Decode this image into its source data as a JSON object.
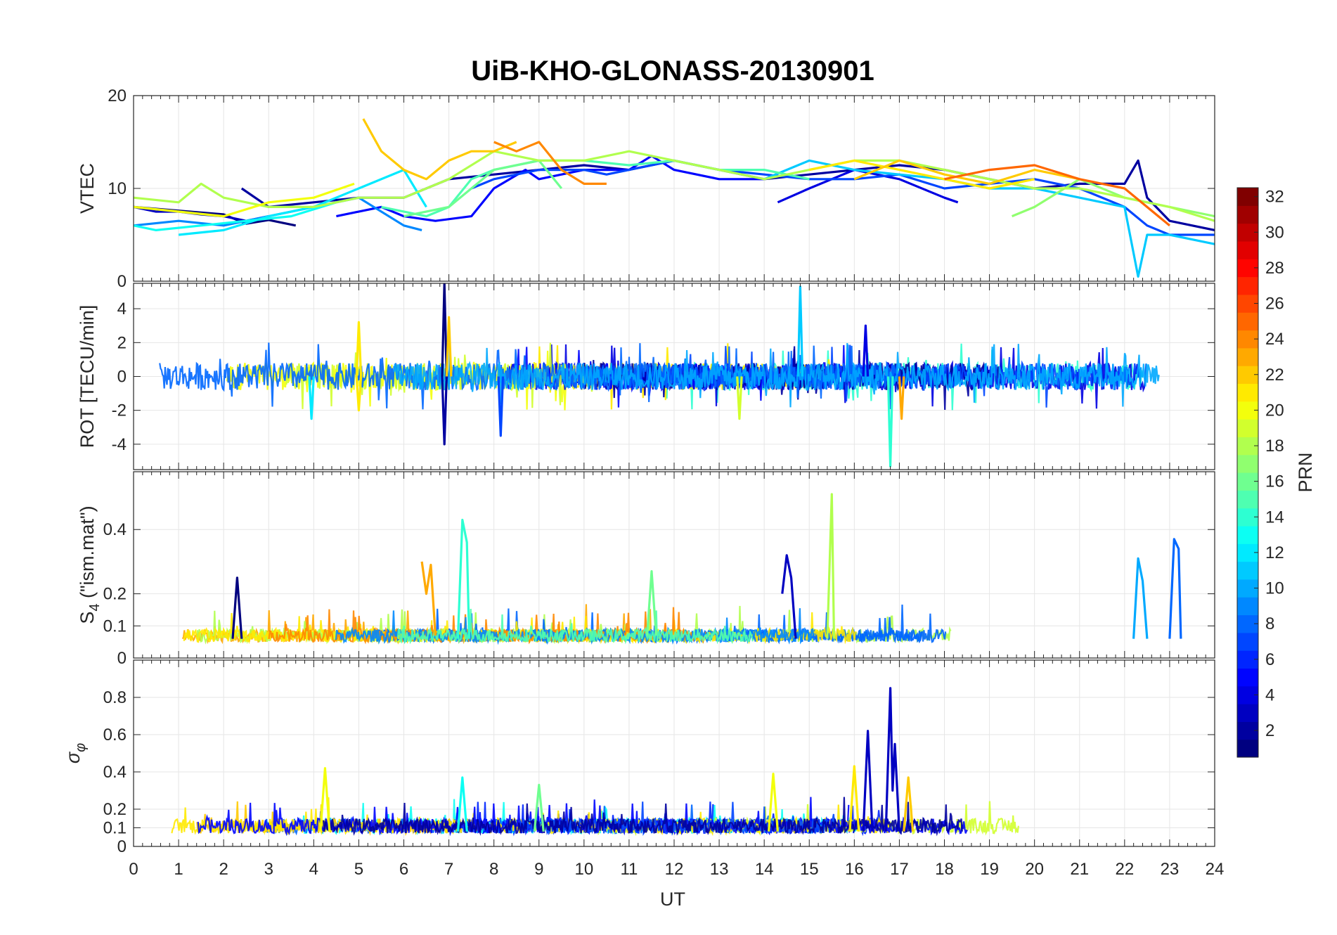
{
  "chart_data": {
    "type": "line",
    "title": "UiB-KHO-GLONASS-20130901",
    "xlabel": "UT",
    "xlim": [
      0,
      24
    ],
    "xticks": [
      0,
      1,
      2,
      3,
      4,
      5,
      6,
      7,
      8,
      9,
      10,
      11,
      12,
      13,
      14,
      15,
      16,
      17,
      18,
      19,
      20,
      21,
      22,
      23,
      24
    ],
    "grid": true,
    "colormap": "jet",
    "colorbar": {
      "label": "PRN",
      "range": [
        1,
        32
      ],
      "ticks": [
        2,
        4,
        6,
        8,
        10,
        12,
        14,
        16,
        18,
        20,
        22,
        24,
        26,
        28,
        30,
        32
      ],
      "placement": "right"
    },
    "panels": [
      {
        "ylabel": "VTEC",
        "ylim": [
          0,
          20
        ],
        "yticks": [
          0,
          10,
          20
        ],
        "series": [
          {
            "prn": 1,
            "x": [
              0,
              1,
              2,
              2.5,
              3,
              3.6
            ],
            "y": [
              8,
              7.6,
              7.2,
              6.2,
              6.6,
              6
            ]
          },
          {
            "prn": 2,
            "x": [
              2.4,
              3,
              4,
              5,
              6,
              7,
              8,
              9,
              10,
              11,
              12,
              13,
              14,
              15,
              16,
              17,
              18,
              19,
              20,
              21,
              22,
              22.3,
              22.5,
              23,
              24
            ],
            "y": [
              10,
              8,
              8.5,
              9,
              9,
              11,
              11.5,
              12,
              12.5,
              12,
              13,
              12,
              11,
              11.5,
              12,
              12.5,
              12,
              11,
              10,
              10.5,
              10.5,
              13,
              9,
              6.5,
              5.5
            ]
          },
          {
            "prn": 3,
            "x": [
              0,
              0.5,
              1,
              1.5,
              2,
              2.5,
              3
            ],
            "y": [
              8,
              7.5,
              7.5,
              7.2,
              7,
              6.5,
              7
            ]
          },
          {
            "prn": 4,
            "x": [
              14.3,
              15,
              16,
              17,
              18,
              18.3
            ],
            "y": [
              8.5,
              10,
              12,
              11,
              9,
              8.5
            ]
          },
          {
            "prn": 5,
            "x": [
              4.5,
              5.5,
              6,
              6.7,
              7.5,
              8,
              8.7,
              9,
              10,
              11,
              11.5,
              12,
              13,
              14
            ],
            "y": [
              7,
              8,
              7,
              6.5,
              7,
              10,
              12,
              11,
              12,
              12,
              13.5,
              12,
              11,
              11
            ]
          },
          {
            "prn": 7,
            "x": [
              7.5,
              8,
              9,
              10,
              10.5,
              11,
              12,
              13,
              14,
              15,
              16,
              17,
              18,
              19,
              20,
              21,
              22,
              22.5,
              23,
              24
            ],
            "y": [
              10,
              11,
              12,
              12,
              11.5,
              12,
              13,
              12,
              11.5,
              11,
              11,
              11.5,
              10,
              10.5,
              11,
              10,
              8,
              6,
              5,
              5
            ]
          },
          {
            "prn": 9,
            "x": [
              0,
              1,
              2,
              3,
              4,
              5,
              6,
              6.4
            ],
            "y": [
              6,
              6.5,
              6,
              7,
              8,
              9,
              6,
              5.5
            ]
          },
          {
            "prn": 11,
            "x": [
              14,
              15,
              16,
              17,
              18,
              19,
              20,
              21,
              22,
              22.3,
              22.5,
              23,
              24
            ],
            "y": [
              11,
              13,
              12,
              11.5,
              11,
              10,
              10,
              9,
              8,
              0.5,
              5,
              5,
              4
            ]
          },
          {
            "prn": 12,
            "x": [
              1,
              2,
              3,
              4,
              5,
              6,
              6.5
            ],
            "y": [
              5,
              5.5,
              7,
              8,
              10,
              12,
              8
            ]
          },
          {
            "prn": 13,
            "x": [
              0,
              0.5,
              1.5,
              2.5,
              3.5,
              4.5
            ],
            "y": [
              6,
              5.5,
              6,
              6.5,
              7,
              8.5
            ]
          },
          {
            "prn": 15,
            "x": [
              5.5,
              6.5,
              7,
              7.5,
              8,
              9,
              10,
              11,
              12,
              13,
              14,
              15
            ],
            "y": [
              8,
              7,
              8,
              11,
              12,
              13,
              13,
              12.5,
              13,
              12,
              12,
              11
            ]
          },
          {
            "prn": 16,
            "x": [
              6,
              7,
              8,
              9,
              9.5
            ],
            "y": [
              7,
              8,
              12,
              13,
              10
            ]
          },
          {
            "prn": 17,
            "x": [
              19.5,
              20,
              21,
              22,
              23,
              24
            ],
            "y": [
              7,
              8,
              11,
              9,
              8,
              7
            ]
          },
          {
            "prn": 18,
            "x": [
              0,
              1,
              1.5,
              2,
              3,
              4,
              5,
              6,
              7,
              8,
              9,
              10,
              11,
              12,
              13,
              14,
              15,
              16,
              17,
              18,
              19,
              20,
              21,
              22,
              23,
              24
            ],
            "y": [
              9,
              8.5,
              10.5,
              9,
              8,
              8,
              9,
              9,
              11,
              14,
              13,
              13,
              14,
              13,
              12,
              11,
              12,
              13,
              13,
              12,
              11,
              10,
              10,
              9,
              8,
              6.5
            ]
          },
          {
            "prn": 20,
            "x": [
              0,
              1,
              2,
              3,
              4,
              4.9
            ],
            "y": [
              8,
              7.5,
              7,
              8.5,
              9,
              10.5
            ]
          },
          {
            "prn": 21,
            "x": [
              15,
              16,
              17,
              18,
              19,
              20
            ],
            "y": [
              12,
              13,
              12,
              11,
              10,
              11
            ]
          },
          {
            "prn": 22,
            "x": [
              5.1,
              5.5,
              6,
              6.5,
              7,
              7.5,
              8,
              8.5
            ],
            "y": [
              17.5,
              14,
              12,
              11,
              13,
              14,
              14,
              15
            ]
          },
          {
            "prn": 22,
            "x": [
              16,
              17,
              18,
              19,
              20,
              21
            ],
            "y": [
              11,
              13,
              11.5,
              10.5,
              12,
              11
            ]
          },
          {
            "prn": 24,
            "x": [
              8,
              8.5,
              9,
              9.5,
              10,
              10.5
            ],
            "y": [
              15,
              14,
              15,
              12,
              10.5,
              10.5
            ]
          },
          {
            "prn": 25,
            "x": [
              18,
              19,
              20,
              21,
              22,
              23
            ],
            "y": [
              11,
              12,
              12.5,
              11,
              10,
              6
            ]
          }
        ]
      },
      {
        "ylabel": "ROT [TECU/min]",
        "ylim": [
          -5.5,
          5.5
        ],
        "yticks": [
          -4,
          -2,
          0,
          2,
          4
        ],
        "series": [
          {
            "prn": 1,
            "x": [
              6.85,
              6.9,
              6.95
            ],
            "y": [
              0,
              5.5,
              0
            ]
          },
          {
            "prn": 2,
            "x": [
              6.85,
              6.9,
              6.95
            ],
            "y": [
              0,
              -4,
              0
            ]
          },
          {
            "prn": 21,
            "x": [
              4.95,
              5,
              5.05
            ],
            "y": [
              0,
              -2,
              0
            ]
          },
          {
            "prn": 21,
            "x": [
              4.95,
              5,
              5.05
            ],
            "y": [
              0,
              3.2,
              0
            ]
          },
          {
            "prn": 22,
            "x": [
              6.95,
              7,
              7.05
            ],
            "y": [
              0,
              3.5,
              0
            ]
          },
          {
            "prn": 11,
            "x": [
              14.75,
              14.8,
              14.85
            ],
            "y": [
              0,
              5.3,
              0
            ]
          },
          {
            "prn": 14,
            "x": [
              16.75,
              16.8,
              16.85
            ],
            "y": [
              0,
              -5.3,
              0
            ]
          },
          {
            "prn": 4,
            "x": [
              16.2,
              16.25,
              16.3
            ],
            "y": [
              0,
              3,
              0
            ]
          },
          {
            "prn": 7,
            "x": [
              8.1,
              8.15,
              8.2
            ],
            "y": [
              0,
              -3.5,
              0
            ]
          },
          {
            "prn": 23,
            "x": [
              17,
              17.05,
              17.1
            ],
            "y": [
              0,
              -2.5,
              0
            ]
          },
          {
            "prn": 19,
            "x": [
              13.4,
              13.45,
              13.5
            ],
            "y": [
              0,
              -2.5,
              0
            ]
          },
          {
            "prn": 12,
            "x": [
              3.9,
              3.95,
              4
            ],
            "y": [
              0,
              -2.5,
              0
            ]
          }
        ]
      },
      {
        "ylabel": "S_4 (\"ism.mat\")",
        "ylim": [
          0,
          0.58
        ],
        "yticks": [
          0,
          0.1,
          0.2,
          0.4
        ],
        "series": [
          {
            "prn": 1,
            "x": [
              2.2,
              2.3,
              2.4
            ],
            "y": [
              0.06,
              0.25,
              0.06
            ]
          },
          {
            "prn": 3,
            "x": [
              14.4,
              14.5,
              14.6,
              14.7
            ],
            "y": [
              0.2,
              0.32,
              0.25,
              0.06
            ]
          },
          {
            "prn": 14,
            "x": [
              7.2,
              7.3,
              7.4,
              7.45
            ],
            "y": [
              0.06,
              0.43,
              0.36,
              0.06
            ]
          },
          {
            "prn": 18,
            "x": [
              15.4,
              15.5,
              15.55
            ],
            "y": [
              0.06,
              0.51,
              0.06
            ]
          },
          {
            "prn": 23,
            "x": [
              6.4,
              6.5,
              6.6,
              6.7
            ],
            "y": [
              0.3,
              0.2,
              0.29,
              0.07
            ]
          },
          {
            "prn": 16,
            "x": [
              11.4,
              11.5,
              11.6
            ],
            "y": [
              0.07,
              0.27,
              0.07
            ]
          },
          {
            "prn": 10,
            "x": [
              22.2,
              22.3,
              22.4,
              22.5
            ],
            "y": [
              0.06,
              0.31,
              0.24,
              0.06
            ]
          },
          {
            "prn": 8,
            "x": [
              23,
              23.1,
              23.2,
              23.25
            ],
            "y": [
              0.06,
              0.37,
              0.34,
              0.06
            ]
          }
        ]
      },
      {
        "ylabel": "σ_φ",
        "ylim": [
          0,
          1
        ],
        "yticks": [
          0,
          0.1,
          0.2,
          0.4,
          0.6,
          0.8
        ],
        "series": [
          {
            "prn": 3,
            "x": [
              16.2,
              16.3,
              16.4
            ],
            "y": [
              0.08,
              0.62,
              0.08
            ]
          },
          {
            "prn": 3,
            "x": [
              16.7,
              16.8,
              16.85,
              16.9,
              17
            ],
            "y": [
              0.08,
              0.85,
              0.3,
              0.55,
              0.08
            ]
          },
          {
            "prn": 20,
            "x": [
              14.1,
              14.2,
              14.3
            ],
            "y": [
              0.08,
              0.39,
              0.08
            ]
          },
          {
            "prn": 20,
            "x": [
              4.15,
              4.25,
              4.35
            ],
            "y": [
              0.08,
              0.42,
              0.08
            ]
          },
          {
            "prn": 21,
            "x": [
              15.9,
              16,
              16.1
            ],
            "y": [
              0.08,
              0.43,
              0.08
            ]
          },
          {
            "prn": 22,
            "x": [
              17.1,
              17.2,
              17.3
            ],
            "y": [
              0.08,
              0.37,
              0.08
            ]
          },
          {
            "prn": 13,
            "x": [
              7.2,
              7.3,
              7.4
            ],
            "y": [
              0.08,
              0.37,
              0.08
            ]
          },
          {
            "prn": 16,
            "x": [
              8.9,
              9,
              9.1
            ],
            "y": [
              0.08,
              0.33,
              0.08
            ]
          }
        ]
      }
    ]
  }
}
